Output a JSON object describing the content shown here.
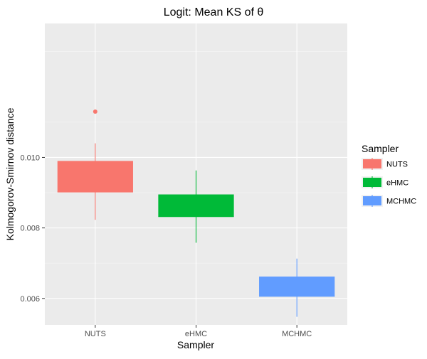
{
  "chart_data": {
    "type": "boxplot",
    "title": "Logit: Mean KS of θ",
    "xlabel": "Sampler",
    "ylabel": "Kolmogorov-Smirnov distance",
    "categories": [
      "NUTS",
      "eHMC",
      "MCHMC"
    ],
    "ylim": [
      0.00525,
      0.0138
    ],
    "y_ticks": [
      0.006,
      0.008,
      0.01
    ],
    "y_tick_labels": [
      "0.006",
      "0.008",
      "0.010"
    ],
    "grid": true,
    "legend": {
      "title": "Sampler",
      "position": "right",
      "entries": [
        "NUTS",
        "eHMC",
        "MCHMC"
      ]
    },
    "boxes": [
      {
        "name": "NUTS",
        "color": "#F8766D",
        "whisker_low": 0.00823,
        "q1": 0.00902,
        "median": 0.00902,
        "q3": 0.0099,
        "whisker_high": 0.0104,
        "outliers": [
          0.0113
        ]
      },
      {
        "name": "eHMC",
        "color": "#00BA38",
        "whisker_low": 0.00758,
        "q1": 0.00832,
        "median": 0.00832,
        "q3": 0.00895,
        "whisker_high": 0.00963,
        "outliers": []
      },
      {
        "name": "MCHMC",
        "color": "#619CFF",
        "whisker_low": 0.00548,
        "q1": 0.00606,
        "median": 0.00606,
        "q3": 0.00662,
        "whisker_high": 0.00713,
        "outliers": []
      }
    ]
  }
}
